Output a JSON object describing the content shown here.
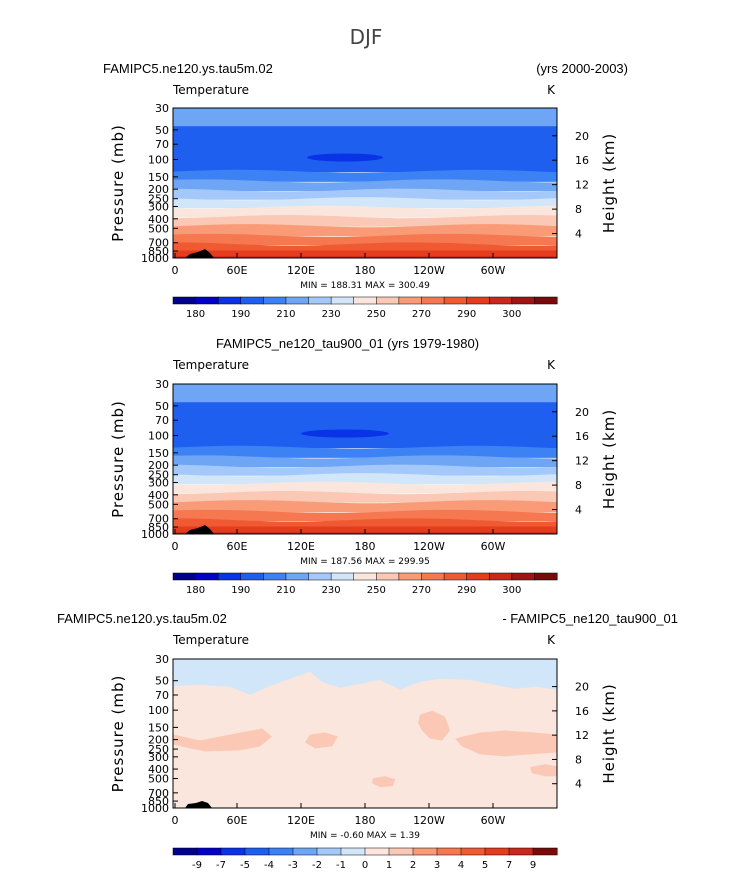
{
  "figure_title": "DJF",
  "chart_data": [
    {
      "type": "heatmap",
      "id": "p1",
      "title_left": "FAMIPC5.ne120.ys.tau5m.02",
      "title_right": "(yrs 2000-2003)",
      "variable": "Temperature",
      "units": "K",
      "ylabel": "Pressure (mb)",
      "ylabel_right": "Height (km)",
      "pressure_ticks": [
        "30",
        "50",
        "70",
        "100",
        "150",
        "200",
        "250",
        "300",
        "400",
        "500",
        "700",
        "850",
        "1000"
      ],
      "height_ticks": [
        "20",
        "16",
        "12",
        "8",
        "4"
      ],
      "lon_ticks": [
        "0",
        "60E",
        "120E",
        "180",
        "120W",
        "60W"
      ],
      "minmax": "MIN = 188.31   MAX = 300.49",
      "colorbar_labels": [
        "180",
        "190",
        "210",
        "230",
        "250",
        "270",
        "290",
        "300"
      ],
      "colors": [
        "#00008c",
        "#0000c8",
        "#0a32e6",
        "#1e5ff0",
        "#3c82f5",
        "#6ea5f5",
        "#a5c8fa",
        "#d2e6fa",
        "#fae6dc",
        "#fac8b4",
        "#fa9b78",
        "#f57850",
        "#f05a32",
        "#e63c1e",
        "#c8281e",
        "#a01414",
        "#780a0a"
      ],
      "band_colors": [
        "#6ea5f5",
        "#1e5ff0",
        "#1e5ff0",
        "#3c82f5",
        "#6ea5f5",
        "#a5c8fa",
        "#d2e6fa",
        "#fae6dc",
        "#fac8b4",
        "#fa9b78",
        "#f57850",
        "#f05a32",
        "#e63c1e",
        "#c8281e"
      ],
      "cold_core_color": "#0a32e6"
    },
    {
      "type": "heatmap",
      "id": "p2",
      "title_left": "FAMIPC5_ne120_tau900_01 (yrs 1979-1980)",
      "title_right": "",
      "variable": "Temperature",
      "units": "K",
      "ylabel": "Pressure (mb)",
      "ylabel_right": "Height (km)",
      "pressure_ticks": [
        "30",
        "50",
        "70",
        "100",
        "150",
        "200",
        "250",
        "300",
        "400",
        "500",
        "700",
        "850",
        "1000"
      ],
      "height_ticks": [
        "20",
        "16",
        "12",
        "8",
        "4"
      ],
      "lon_ticks": [
        "0",
        "60E",
        "120E",
        "180",
        "120W",
        "60W"
      ],
      "minmax": "MIN = 187.56   MAX = 299.95",
      "colorbar_labels": [
        "180",
        "190",
        "210",
        "230",
        "250",
        "270",
        "290",
        "300"
      ],
      "colors": [
        "#00008c",
        "#0000c8",
        "#0a32e6",
        "#1e5ff0",
        "#3c82f5",
        "#6ea5f5",
        "#a5c8fa",
        "#d2e6fa",
        "#fae6dc",
        "#fac8b4",
        "#fa9b78",
        "#f57850",
        "#f05a32",
        "#e63c1e",
        "#c8281e",
        "#a01414",
        "#780a0a"
      ],
      "band_colors": [
        "#6ea5f5",
        "#1e5ff0",
        "#1e5ff0",
        "#3c82f5",
        "#6ea5f5",
        "#a5c8fa",
        "#d2e6fa",
        "#fae6dc",
        "#fac8b4",
        "#fa9b78",
        "#f57850",
        "#f05a32",
        "#e63c1e",
        "#c8281e"
      ],
      "cold_core_color": "#0a32e6"
    },
    {
      "type": "heatmap",
      "id": "p3",
      "title_left": "FAMIPC5.ne120.ys.tau5m.02",
      "title_right": "- FAMIPC5_ne120_tau900_01",
      "variable": "Temperature",
      "units": "K",
      "ylabel": "Pressure (mb)",
      "ylabel_right": "Height (km)",
      "pressure_ticks": [
        "30",
        "50",
        "70",
        "100",
        "150",
        "200",
        "250",
        "300",
        "400",
        "500",
        "700",
        "850",
        "1000"
      ],
      "height_ticks": [
        "20",
        "16",
        "12",
        "8",
        "4"
      ],
      "lon_ticks": [
        "0",
        "60E",
        "120E",
        "180",
        "120W",
        "60W"
      ],
      "minmax": "MIN =  -0.60   MAX =   1.39",
      "colorbar_labels": [
        "-9",
        "-7",
        "-5",
        "-4",
        "-3",
        "-2",
        "-1",
        "0",
        "1",
        "2",
        "3",
        "4",
        "5",
        "7",
        "9"
      ],
      "colors": [
        "#00008c",
        "#0000c8",
        "#0a32e6",
        "#1e5ff0",
        "#3c82f5",
        "#6ea5f5",
        "#a5c8fa",
        "#d2e6fa",
        "#fae6dc",
        "#fac8b4",
        "#fa9b78",
        "#f57850",
        "#f05a32",
        "#e63c1e",
        "#c8281e",
        "#780a0a"
      ],
      "diff_light_blue": "#d2e6fa",
      "diff_light_pink": "#fae6dc",
      "diff_pink": "#fac8b4"
    }
  ]
}
